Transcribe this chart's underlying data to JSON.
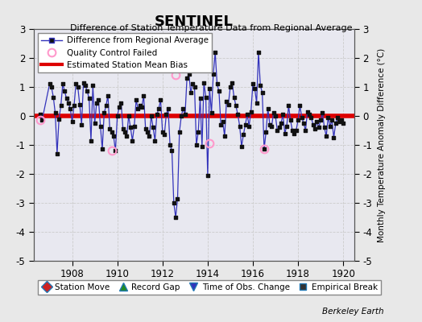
{
  "title": "SENTINEL",
  "subtitle": "Difference of Station Temperature Data from Regional Average",
  "ylabel": "Monthly Temperature Anomaly Difference (°C)",
  "xlim": [
    1906.3,
    1920.5
  ],
  "ylim": [
    -5,
    3
  ],
  "yticks": [
    -5,
    -4,
    -3,
    -2,
    -1,
    0,
    1,
    2,
    3
  ],
  "xticks": [
    1908,
    1910,
    1912,
    1914,
    1916,
    1918,
    1920
  ],
  "bias": 0.0,
  "bg_color": "#e8e8e8",
  "plot_bg": "#e8e8f0",
  "line_color": "#3333bb",
  "bias_color": "#dd0000",
  "marker_color": "#111111",
  "qc_color": "#ff99cc",
  "monthly_times": [
    1906.583,
    1906.667,
    1907.0,
    1907.083,
    1907.167,
    1907.25,
    1907.333,
    1907.417,
    1907.5,
    1907.583,
    1907.667,
    1907.75,
    1907.833,
    1907.917,
    1908.0,
    1908.083,
    1908.167,
    1908.25,
    1908.333,
    1908.417,
    1908.5,
    1908.583,
    1908.667,
    1908.75,
    1908.833,
    1908.917,
    1909.0,
    1909.083,
    1909.167,
    1909.25,
    1909.333,
    1909.417,
    1909.5,
    1909.583,
    1909.667,
    1909.75,
    1909.833,
    1909.917,
    1910.0,
    1910.083,
    1910.167,
    1910.25,
    1910.333,
    1910.417,
    1910.5,
    1910.583,
    1910.667,
    1910.75,
    1910.833,
    1910.917,
    1911.0,
    1911.083,
    1911.167,
    1911.25,
    1911.333,
    1911.417,
    1911.5,
    1911.583,
    1911.667,
    1911.75,
    1911.833,
    1911.917,
    1912.0,
    1912.083,
    1912.167,
    1912.25,
    1912.333,
    1912.417,
    1912.5,
    1912.583,
    1912.667,
    1912.75,
    1912.833,
    1912.917,
    1913.0,
    1913.083,
    1913.167,
    1913.25,
    1913.333,
    1913.417,
    1913.5,
    1913.583,
    1913.667,
    1913.75,
    1913.833,
    1913.917,
    1914.0,
    1914.083,
    1914.167,
    1914.25,
    1914.333,
    1914.417,
    1914.5,
    1914.583,
    1914.667,
    1914.75,
    1914.833,
    1914.917,
    1915.0,
    1915.083,
    1915.167,
    1915.25,
    1915.333,
    1915.417,
    1915.5,
    1915.583,
    1915.667,
    1915.75,
    1915.833,
    1915.917,
    1916.0,
    1916.083,
    1916.167,
    1916.25,
    1916.333,
    1916.417,
    1916.5,
    1916.583,
    1916.667,
    1916.75,
    1916.833,
    1916.917,
    1917.0,
    1917.083,
    1917.167,
    1917.25,
    1917.333,
    1917.417,
    1917.5,
    1917.583,
    1917.667,
    1917.75,
    1917.833,
    1917.917,
    1918.0,
    1918.083,
    1918.167,
    1918.25,
    1918.333,
    1918.417,
    1918.5,
    1918.583,
    1918.667,
    1918.75,
    1918.833,
    1918.917,
    1919.0,
    1919.083,
    1919.167,
    1919.25,
    1919.333,
    1919.417,
    1919.5,
    1919.583,
    1919.667,
    1919.75,
    1919.833,
    1919.917,
    1920.0
  ],
  "monthly_vals": [
    0.05,
    -0.15,
    1.1,
    1.0,
    0.65,
    0.1,
    -1.3,
    -0.1,
    0.35,
    1.1,
    0.85,
    0.6,
    0.45,
    0.25,
    -0.2,
    0.35,
    1.1,
    1.0,
    0.4,
    -0.3,
    1.15,
    1.05,
    0.85,
    0.6,
    -0.85,
    1.05,
    -0.25,
    0.45,
    0.55,
    -0.35,
    -1.15,
    0.1,
    0.35,
    0.7,
    -0.45,
    -0.55,
    -0.7,
    -1.2,
    0.0,
    0.3,
    0.45,
    -0.45,
    -0.55,
    -0.7,
    0.0,
    -0.4,
    -0.85,
    -0.35,
    0.55,
    0.25,
    0.35,
    0.3,
    0.7,
    -0.45,
    -0.55,
    -0.7,
    0.0,
    -0.4,
    -0.85,
    0.05,
    0.25,
    0.55,
    -0.55,
    -0.65,
    0.05,
    0.25,
    -1.0,
    -1.2,
    -3.0,
    -3.5,
    -2.85,
    -0.55,
    0.0,
    0.25,
    0.05,
    1.3,
    1.45,
    0.8,
    1.1,
    1.0,
    -1.0,
    -0.55,
    0.6,
    -1.05,
    1.15,
    0.65,
    -2.05,
    0.95,
    0.1,
    1.45,
    2.2,
    1.1,
    0.85,
    -0.3,
    -0.2,
    -0.7,
    0.5,
    0.4,
    1.0,
    1.15,
    0.65,
    0.35,
    0.05,
    -0.35,
    -1.05,
    -0.65,
    -0.3,
    0.05,
    -0.35,
    0.15,
    1.1,
    0.95,
    0.45,
    2.2,
    1.05,
    0.8,
    -1.15,
    -0.55,
    0.25,
    -0.3,
    -0.35,
    0.1,
    0.0,
    -0.5,
    -0.4,
    -0.25,
    0.05,
    -0.6,
    -0.35,
    0.35,
    -0.15,
    -0.5,
    -0.6,
    -0.5,
    -0.15,
    0.35,
    -0.05,
    -0.25,
    -0.5,
    0.15,
    0.05,
    -0.05,
    -0.3,
    -0.45,
    -0.2,
    -0.4,
    -0.15,
    0.1,
    -0.4,
    -0.7,
    -0.05,
    -0.35,
    -0.15,
    -0.75,
    -0.25,
    -0.05,
    -0.2,
    -0.15,
    -0.25
  ],
  "qc_pts": [
    [
      1906.583,
      -0.15
    ],
    [
      1909.75,
      -1.2
    ],
    [
      1912.583,
      1.42
    ],
    [
      1914.083,
      -0.95
    ],
    [
      1916.5,
      -1.15
    ]
  ]
}
